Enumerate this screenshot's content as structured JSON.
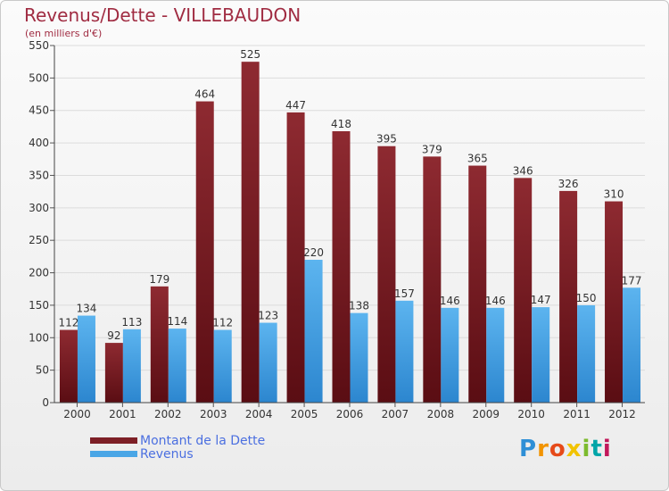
{
  "chart_data": {
    "type": "bar",
    "title": "Revenus/Dette - VILLEBAUDON",
    "subtitle": "(en milliers d'€)",
    "categories": [
      "2000",
      "2001",
      "2002",
      "2003",
      "2004",
      "2005",
      "2006",
      "2007",
      "2008",
      "2009",
      "2010",
      "2011",
      "2012"
    ],
    "series": [
      {
        "name": "Montant de la Dette",
        "color": "#7d1f26",
        "values": [
          112,
          92,
          179,
          464,
          525,
          447,
          418,
          395,
          379,
          365,
          346,
          326,
          310
        ]
      },
      {
        "name": "Revenus",
        "color": "#4aa6e6",
        "values": [
          134,
          113,
          114,
          112,
          123,
          220,
          138,
          157,
          146,
          146,
          147,
          150,
          177
        ]
      }
    ],
    "ylim": [
      0,
      550
    ],
    "yticks": [
      0,
      50,
      100,
      150,
      200,
      250,
      300,
      350,
      400,
      450,
      500,
      550
    ],
    "grid": true,
    "legend": "bottom-left"
  },
  "logo": {
    "text": "Proxiti"
  }
}
